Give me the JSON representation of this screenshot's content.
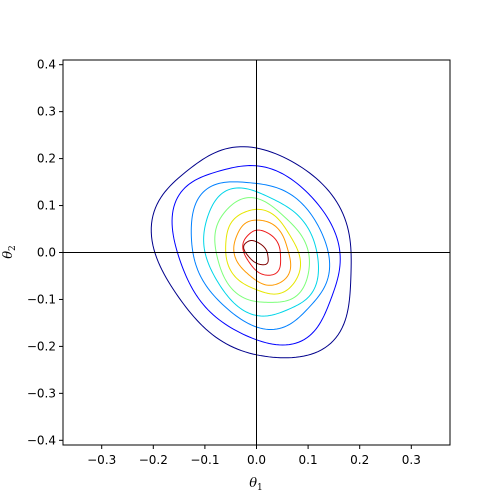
{
  "chart_data": {
    "type": "contour",
    "title": "",
    "xlabel": "θ",
    "xlabel_sub": "1",
    "ylabel": "θ",
    "ylabel_sub": "2",
    "xlim": [
      -0.375,
      0.375
    ],
    "ylim": [
      -0.41,
      0.41
    ],
    "xticks": [
      -0.3,
      -0.2,
      -0.1,
      0.0,
      0.1,
      0.2,
      0.3
    ],
    "yticks": [
      -0.4,
      -0.3,
      -0.2,
      -0.1,
      0.0,
      0.1,
      0.2,
      0.3,
      0.4
    ],
    "xtick_labels": [
      "−0.3",
      "−0.2",
      "−0.1",
      "0.0",
      "0.1",
      "0.2",
      "0.3"
    ],
    "ytick_labels": [
      "−0.4",
      "−0.3",
      "−0.2",
      "−0.1",
      "0.0",
      "0.1",
      "0.2",
      "0.3",
      "0.4"
    ],
    "reference_lines": {
      "x": 0,
      "y": 0
    },
    "grid": false,
    "colormap": "jet",
    "contour_levels": [
      {
        "level": 1,
        "color": "#00008b",
        "center": [
          0.0,
          0.0
        ],
        "semi_axes": [
          0.183,
          0.233
        ],
        "angle_deg": 26
      },
      {
        "level": 2,
        "color": "#0000ff",
        "center": [
          0.002,
          0.0
        ],
        "semi_axes": [
          0.151,
          0.198
        ],
        "angle_deg": 26
      },
      {
        "level": 3,
        "color": "#0080ff",
        "center": [
          0.005,
          0.0
        ],
        "semi_axes": [
          0.126,
          0.163
        ],
        "angle_deg": 26
      },
      {
        "level": 4,
        "color": "#00d5e8",
        "center": [
          0.007,
          0.0
        ],
        "semi_axes": [
          0.104,
          0.14
        ],
        "angle_deg": 25
      },
      {
        "level": 5,
        "color": "#7cff79",
        "center": [
          0.009,
          0.0
        ],
        "semi_axes": [
          0.086,
          0.116
        ],
        "angle_deg": 24
      },
      {
        "level": 6,
        "color": "#e6e600",
        "center": [
          0.011,
          0.0
        ],
        "semi_axes": [
          0.068,
          0.093
        ],
        "angle_deg": 23
      },
      {
        "level": 7,
        "color": "#ff9900",
        "center": [
          0.012,
          0.0
        ],
        "semi_axes": [
          0.051,
          0.072
        ],
        "angle_deg": 22
      },
      {
        "level": 8,
        "color": "#ee1c1c",
        "center": [
          0.012,
          0.0
        ],
        "semi_axes": [
          0.034,
          0.05
        ],
        "angle_deg": 22
      },
      {
        "level": 9,
        "color": "#800000",
        "center": [
          0.0,
          0.0
        ],
        "semi_axes": [
          0.018,
          0.03
        ],
        "angle_deg": 40
      }
    ]
  }
}
